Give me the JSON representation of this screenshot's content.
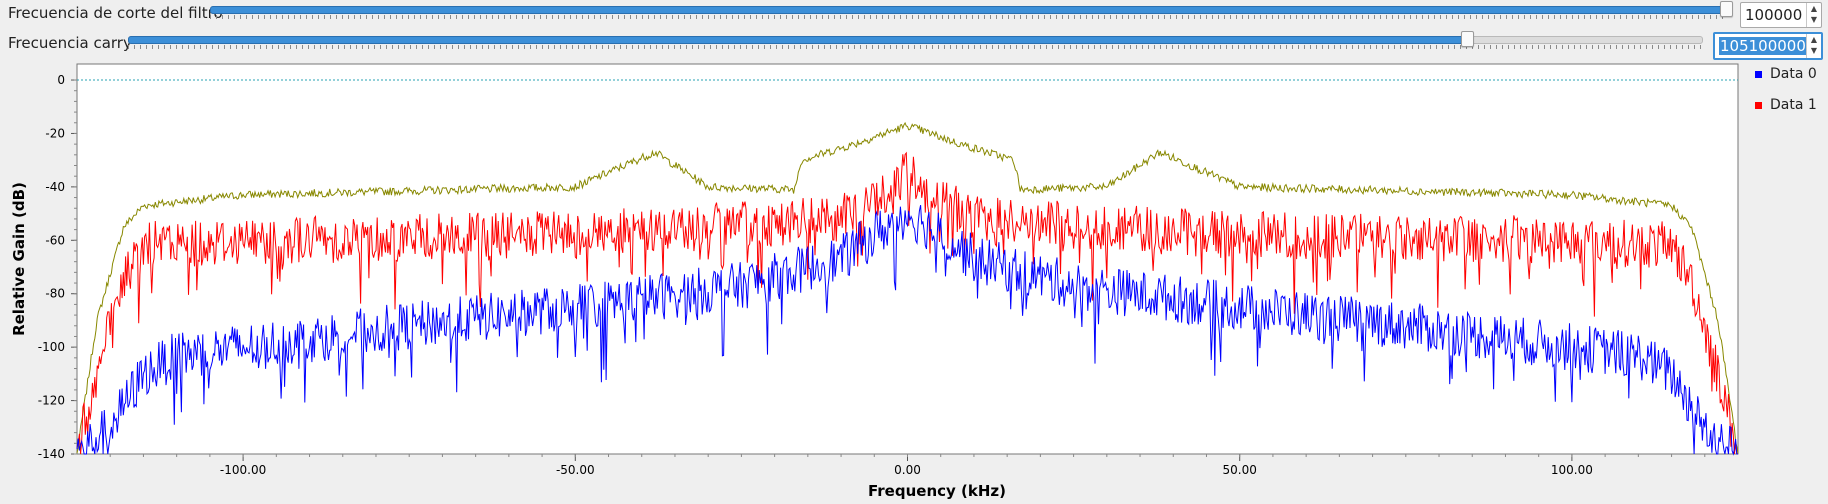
{
  "controls": {
    "cutoff": {
      "label": "Frecuencia de corte del filtro",
      "value": "100000",
      "slider_fraction": 0.999
    },
    "carry": {
      "label": "Frecuencia carry",
      "value": "105100000",
      "slider_fraction": 0.85
    }
  },
  "colors": {
    "data0": "#0000ff",
    "data1": "#ff0000",
    "data2": "#888800",
    "reference": "#2aa3b3",
    "slider_accent": "#3c8fd8"
  },
  "chart_data": {
    "type": "line",
    "xlabel": "Frequency (kHz)",
    "ylabel": "Relative Gain (dB)",
    "xlim": [
      -125,
      125
    ],
    "ylim": [
      -140,
      6
    ],
    "x_ticks": [
      -100,
      -50,
      0,
      50,
      100
    ],
    "x_tick_labels": [
      "-100.00",
      "-50.00",
      "0.00",
      "50.00",
      "100.00"
    ],
    "y_ticks": [
      0,
      -20,
      -40,
      -60,
      -80,
      -100,
      -120,
      -140
    ],
    "y_tick_labels": [
      "0",
      "-20",
      "-40",
      "-60",
      "-80",
      "-100",
      "-120",
      "-140"
    ],
    "grid": false,
    "legend_position": "right",
    "reference_line_y": 0,
    "series": [
      {
        "name": "Data 0",
        "color": "#0000ff",
        "x": [
          -125,
          -120,
          -115,
          -110,
          -100,
          -75,
          -50,
          -25,
          -10,
          -5,
          0,
          5,
          10,
          25,
          50,
          75,
          100,
          110,
          115,
          120,
          125
        ],
        "y": [
          -140,
          -130,
          -110,
          -103,
          -100,
          -92,
          -85,
          -77,
          -67,
          -58,
          -50,
          -58,
          -67,
          -77,
          -85,
          -92,
          -100,
          -103,
          -110,
          -130,
          -140
        ]
      },
      {
        "name": "Data 1",
        "color": "#ff0000",
        "x": [
          -125,
          -122,
          -118,
          -115,
          -100,
          -50,
          -10,
          -3,
          0,
          3,
          10,
          50,
          100,
          115,
          118,
          122,
          125
        ],
        "y": [
          -140,
          -110,
          -75,
          -62,
          -60,
          -58,
          -52,
          -42,
          -35,
          -42,
          -52,
          -58,
          -60,
          -62,
          -75,
          -110,
          -140
        ]
      },
      {
        "name": "",
        "color": "#888800",
        "x": [
          -125,
          -122,
          -118,
          -115,
          -100,
          -50,
          -38,
          -30,
          -17,
          -16,
          -8,
          0,
          8,
          16,
          17,
          30,
          38,
          50,
          100,
          115,
          118,
          122,
          125
        ],
        "y": [
          -140,
          -90,
          -55,
          -47,
          -43,
          -40,
          -27,
          -40,
          -41,
          -30,
          -24,
          -17,
          -24,
          -30,
          -41,
          -40,
          -27,
          -40,
          -43,
          -47,
          -55,
          -90,
          -140
        ]
      }
    ]
  }
}
